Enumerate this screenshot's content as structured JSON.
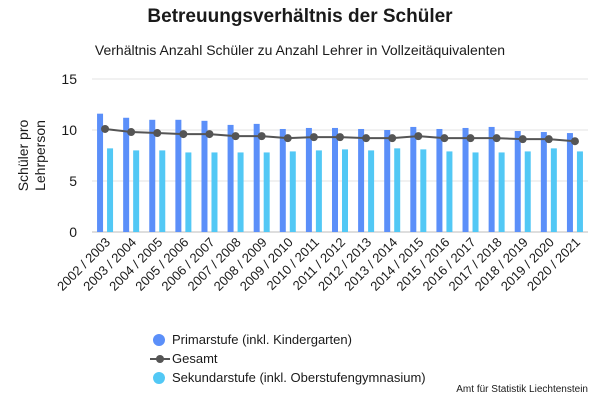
{
  "chart_data": {
    "type": "bar",
    "title": "Betreuungsverhältnis der Schüler",
    "subtitle": "Verhältnis Anzahl Schüler zu Anzahl Lehrer in Vollzeitäquivalenten",
    "ylabel_lines": [
      "Schüler pro",
      "Lehrperson"
    ],
    "ylim": [
      0,
      15
    ],
    "yticks": [
      "0",
      "5",
      "10",
      "15"
    ],
    "grid": true,
    "legend_position": "bottom",
    "categories": [
      "2002 / 2003",
      "2003 / 2004",
      "2004 / 2005",
      "2005 / 2006",
      "2006 / 2007",
      "2007 / 2008",
      "2008 / 2009",
      "2009 / 2010",
      "2010 / 2011",
      "2011 / 2012",
      "2012 / 2013",
      "2013 / 2014",
      "2014 / 2015",
      "2015 / 2016",
      "2016 / 2017",
      "2017 / 2018",
      "2018 / 2019",
      "2019 / 2020",
      "2020 / 2021"
    ],
    "series": [
      {
        "name": "Primarstufe (inkl. Kindergarten)",
        "kind": "bar",
        "color": "#5b8ff9",
        "values": [
          11.6,
          11.2,
          11.0,
          11.0,
          10.9,
          10.5,
          10.6,
          10.1,
          10.2,
          10.2,
          10.1,
          10.0,
          10.3,
          10.1,
          10.2,
          10.3,
          9.9,
          9.8,
          9.7
        ]
      },
      {
        "name": "Gesamt",
        "kind": "line",
        "color": "#555555",
        "values": [
          10.1,
          9.8,
          9.7,
          9.6,
          9.6,
          9.4,
          9.4,
          9.2,
          9.3,
          9.3,
          9.2,
          9.2,
          9.4,
          9.2,
          9.2,
          9.2,
          9.1,
          9.1,
          8.9
        ]
      },
      {
        "name": "Sekundarstufe (inkl. Oberstufengymnasium)",
        "kind": "bar",
        "color": "#52c8f5",
        "values": [
          8.2,
          8.0,
          8.0,
          7.8,
          7.8,
          7.8,
          7.8,
          7.9,
          8.0,
          8.1,
          8.0,
          8.2,
          8.1,
          7.9,
          7.8,
          7.8,
          7.9,
          8.2,
          7.9
        ]
      }
    ]
  },
  "legend": {
    "items": [
      {
        "label": "Primarstufe (inkl. Kindergarten)",
        "color": "#5b8ff9"
      },
      {
        "label": "Gesamt",
        "color": "#555555"
      },
      {
        "label": "Sekundarstufe (inkl. Oberstufengymnasium)",
        "color": "#52c8f5"
      }
    ]
  },
  "source": "Amt für Statistik Liechtenstein"
}
